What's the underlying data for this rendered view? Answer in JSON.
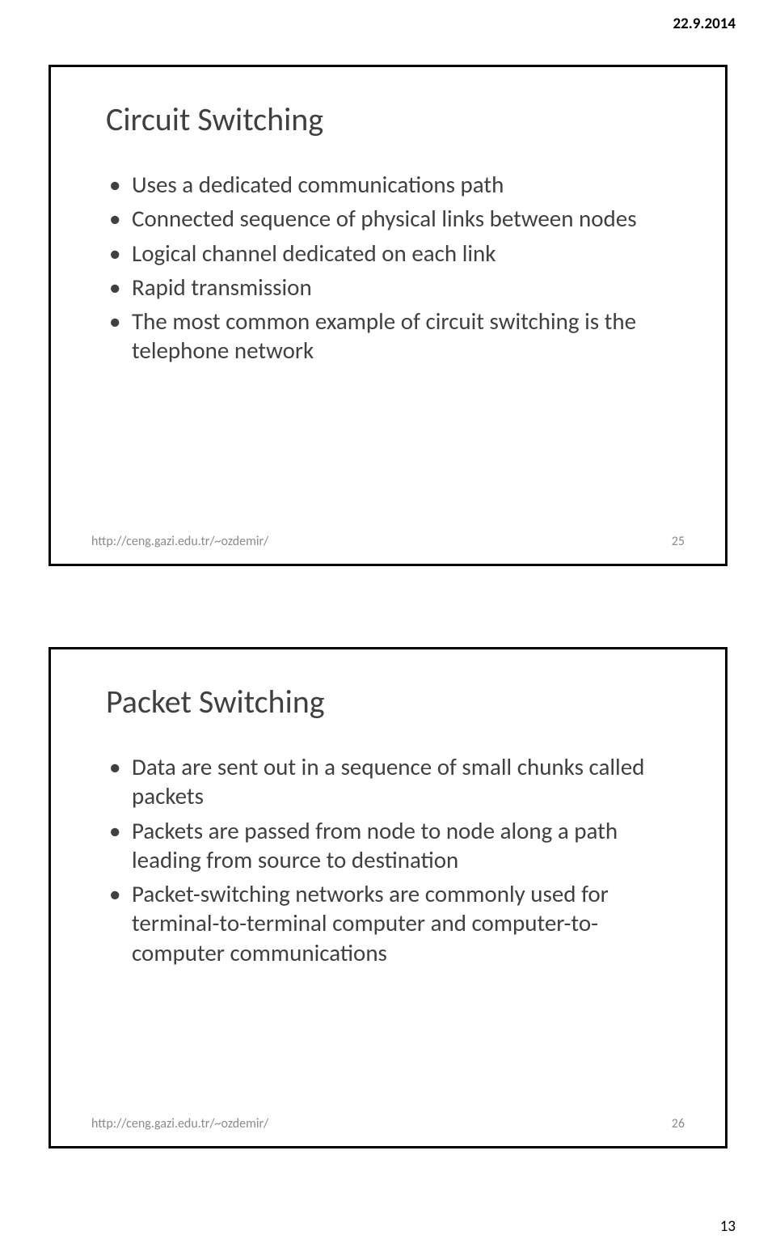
{
  "header_date": "22.9.2014",
  "page_number": "13",
  "slide1": {
    "title": "Circuit Switching",
    "bullets": [
      "Uses a dedicated communications path",
      "Connected sequence of physical links between nodes",
      "Logical channel dedicated on each link",
      "Rapid transmission",
      "The most common example of circuit switching is the telephone network"
    ],
    "footer_url": "http://ceng.gazi.edu.tr/~ozdemir/",
    "footer_num": "25"
  },
  "slide2": {
    "title": "Packet Switching",
    "bullets": [
      "Data are sent out in a sequence of small chunks called packets",
      "Packets are passed from node to node along a path leading from source to destination",
      "Packet-switching networks are commonly used for terminal-to-terminal computer and computer-to-computer communications"
    ],
    "footer_url": "http://ceng.gazi.edu.tr/~ozdemir/",
    "footer_num": "26"
  },
  "colors": {
    "text": "#404040",
    "footer_text": "#8a8a8a",
    "border": "#000000",
    "background": "#ffffff"
  },
  "fonts": {
    "title_size": 40,
    "bullet_size": 29,
    "footer_size": 16,
    "header_size": 19
  }
}
